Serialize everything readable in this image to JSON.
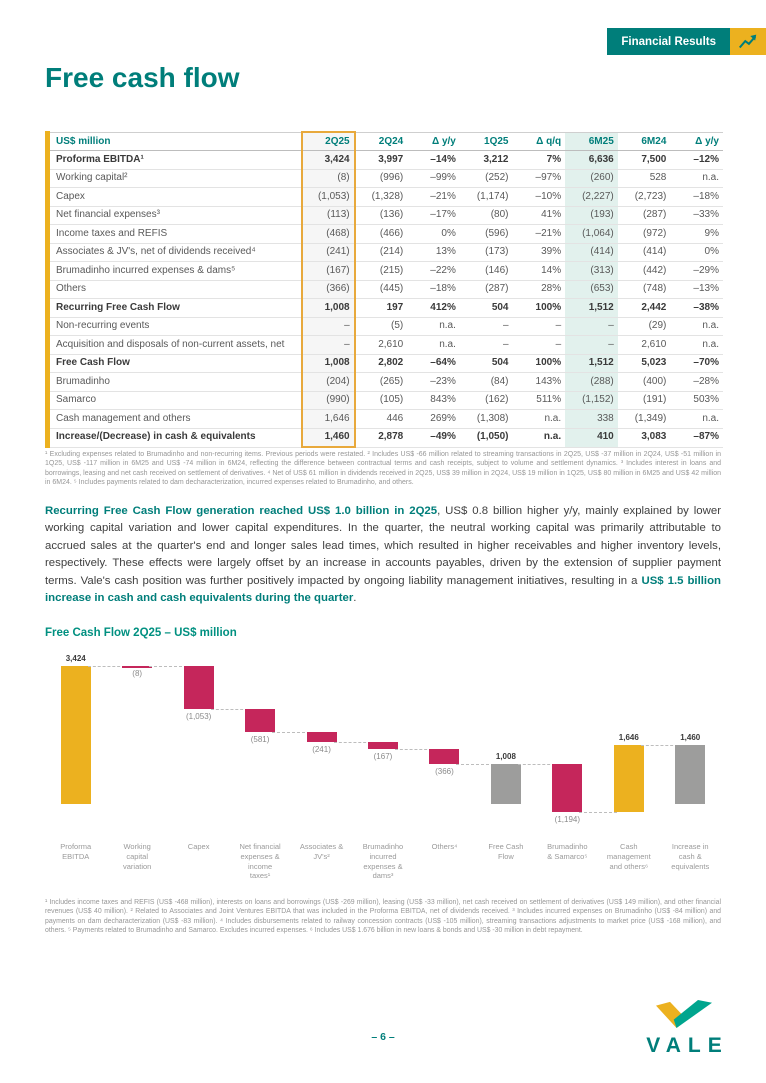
{
  "badge": {
    "label": "Financial Results"
  },
  "page": {
    "title": "Free cash flow",
    "number": "– 6 –",
    "brand": "VALE"
  },
  "colors": {
    "teal": "#007E7A",
    "gold": "#ECB11F",
    "crimson": "#C5265B",
    "gray_bar": "#9D9D9C",
    "mint_bg": "#E2F1ED",
    "gold_frame": "#E8A93C"
  },
  "table": {
    "columns": [
      "US$ million",
      "2Q25",
      "2Q24",
      "Δ y/y",
      "1Q25",
      "Δ q/q",
      "6M25",
      "6M24",
      "Δ y/y"
    ],
    "rows": [
      {
        "label": "Proforma EBITDA¹",
        "bold": true,
        "values": [
          "3,424",
          "3,997",
          "–14%",
          "3,212",
          "7%",
          "6,636",
          "7,500",
          "–12%"
        ]
      },
      {
        "label": "Working capital²",
        "bold": false,
        "values": [
          "(8)",
          "(996)",
          "–99%",
          "(252)",
          "–97%",
          "(260)",
          "528",
          "n.a."
        ]
      },
      {
        "label": "Capex",
        "bold": false,
        "values": [
          "(1,053)",
          "(1,328)",
          "–21%",
          "(1,174)",
          "–10%",
          "(2,227)",
          "(2,723)",
          "–18%"
        ]
      },
      {
        "label": "Net financial expenses³",
        "bold": false,
        "values": [
          "(113)",
          "(136)",
          "–17%",
          "(80)",
          "41%",
          "(193)",
          "(287)",
          "–33%"
        ]
      },
      {
        "label": "Income taxes and REFIS",
        "bold": false,
        "values": [
          "(468)",
          "(466)",
          "0%",
          "(596)",
          "–21%",
          "(1,064)",
          "(972)",
          "9%"
        ]
      },
      {
        "label": "Associates & JV's, net of dividends received⁴",
        "bold": false,
        "values": [
          "(241)",
          "(214)",
          "13%",
          "(173)",
          "39%",
          "(414)",
          "(414)",
          "0%"
        ]
      },
      {
        "label": "Brumadinho incurred expenses & dams⁵",
        "bold": false,
        "values": [
          "(167)",
          "(215)",
          "–22%",
          "(146)",
          "14%",
          "(313)",
          "(442)",
          "–29%"
        ]
      },
      {
        "label": "Others",
        "bold": false,
        "values": [
          "(366)",
          "(445)",
          "–18%",
          "(287)",
          "28%",
          "(653)",
          "(748)",
          "–13%"
        ]
      },
      {
        "label": "Recurring Free Cash Flow",
        "bold": true,
        "values": [
          "1,008",
          "197",
          "412%",
          "504",
          "100%",
          "1,512",
          "2,442",
          "–38%"
        ]
      },
      {
        "label": "Non-recurring events",
        "bold": false,
        "values": [
          "–",
          "(5)",
          "n.a.",
          "–",
          "–",
          "–",
          "(29)",
          "n.a."
        ]
      },
      {
        "label": "Acquisition and disposals of non-current assets, net",
        "bold": false,
        "values": [
          "–",
          "2,610",
          "n.a.",
          "–",
          "–",
          "–",
          "2,610",
          "n.a."
        ]
      },
      {
        "label": "Free Cash Flow",
        "bold": true,
        "values": [
          "1,008",
          "2,802",
          "–64%",
          "504",
          "100%",
          "1,512",
          "5,023",
          "–70%"
        ]
      },
      {
        "label": "Brumadinho",
        "bold": false,
        "values": [
          "(204)",
          "(265)",
          "–23%",
          "(84)",
          "143%",
          "(288)",
          "(400)",
          "–28%"
        ]
      },
      {
        "label": "Samarco",
        "bold": false,
        "values": [
          "(990)",
          "(105)",
          "843%",
          "(162)",
          "511%",
          "(1,152)",
          "(191)",
          "503%"
        ]
      },
      {
        "label": "Cash management and others",
        "bold": false,
        "values": [
          "1,646",
          "446",
          "269%",
          "(1,308)",
          "n.a.",
          "338",
          "(1,349)",
          "n.a."
        ]
      },
      {
        "label": "Increase/(Decrease) in cash & equivalents",
        "bold": true,
        "values": [
          "1,460",
          "2,878",
          "–49%",
          "(1,050)",
          "n.a.",
          "410",
          "3,083",
          "–87%"
        ]
      }
    ],
    "footnotes": "¹ Excluding expenses related to Brumadinho and non-recurring items. Previous periods were restated. ² Includes US$ -66 million related to streaming transactions in 2Q25, US$ -37 million in 2Q24, US$ -51 million in 1Q25, US$ -117 million in 6M25 and US$ -74 million in 6M24, reflecting the difference between contractual terms and cash receipts, subject to volume and settlement dynamics. ³ Includes interest in loans and borrowings, leasing and net cash received on settlement of derivatives. ⁴ Net of US$ 61 million in dividends received in 2Q25, US$ 39 million in 2Q24, US$ 19 million in 1Q25, US$ 80 million in 6M25 and US$ 42 million in 6M24. ⁵ Includes payments related to dam decharacterization, incurred expenses related to Brumadinho, and others."
  },
  "paragraph": {
    "lead_bold": "Recurring Free Cash Flow generation reached US$ 1.0 billion in 2Q25",
    "body": ", US$ 0.8 billion higher y/y, mainly explained by lower working capital variation and lower capital expenditures. In the quarter, the neutral working capital was primarily attributable to accrued sales at the quarter's end and longer sales lead times, which resulted in higher receivables and higher inventory levels, respectively. These effects were largely offset by an increase in accounts payables, driven by the extension of supplier payment terms. Vale's cash position was further positively impacted by ongoing liability management initiatives, resulting in a ",
    "tail_bold": "US$ 1.5 billion increase in cash and cash equivalents during the quarter",
    "period": "."
  },
  "chart_data": {
    "type": "waterfall",
    "title": "Free Cash Flow 2Q25 – US$ million",
    "ylim": [
      -186,
      3424
    ],
    "grid": false,
    "items": [
      {
        "label": "Proforma\nEBITDA",
        "value": 3424,
        "display": "3,424",
        "kind": "start",
        "color": "#ECB11F"
      },
      {
        "label": "Working\ncapital\nvariation",
        "value": -8,
        "display": "(8)",
        "kind": "delta",
        "color": "#C5265B"
      },
      {
        "label": "Capex",
        "value": -1053,
        "display": "(1,053)",
        "kind": "delta",
        "color": "#C5265B"
      },
      {
        "label": "Net financial\nexpenses &\nincome\ntaxes¹",
        "value": -581,
        "display": "(581)",
        "kind": "delta",
        "color": "#C5265B"
      },
      {
        "label": "Associates &\nJV's²",
        "value": -241,
        "display": "(241)",
        "kind": "delta",
        "color": "#C5265B"
      },
      {
        "label": "Brumadinho\nincurred\nexpenses &\ndams³",
        "value": -167,
        "display": "(167)",
        "kind": "delta",
        "color": "#C5265B"
      },
      {
        "label": "Others⁴",
        "value": -366,
        "display": "(366)",
        "kind": "delta",
        "color": "#C5265B"
      },
      {
        "label": "Free Cash\nFlow",
        "value": 1008,
        "display": "1,008",
        "kind": "subtotal",
        "color": "#9D9D9C"
      },
      {
        "label": "Brumadinho\n& Samarco⁵",
        "value": -1194,
        "display": "(1,194)",
        "kind": "delta",
        "color": "#C5265B"
      },
      {
        "label": "Cash\nmanagement\nand others⁶",
        "value": 1646,
        "display": "1,646",
        "kind": "delta",
        "color": "#ECB11F"
      },
      {
        "label": "Increase in\ncash &\nequivalents",
        "value": 1460,
        "display": "1,460",
        "kind": "total",
        "color": "#9D9D9C"
      }
    ],
    "footnotes": "¹ Includes income taxes and REFIS (US$ -468 million), interests on loans and borrowings (US$ -269 million), leasing (US$ -33 million), net cash received on settlement of derivatives (US$ 149 million), and other financial revenues (US$ 40 million). ² Related to Associates and Joint Ventures EBITDA that was included in the Proforma EBITDA, net of dividends received. ³ Includes incurred expenses on Brumadinho (US$ -84 million) and payments on dam decharacterization (US$ -83 million). ⁴ Includes disbursements related to railway concession contracts (US$ -105 million), streaming transactions adjustments to market price (US$ -168 million), and others. ⁵ Payments related to Brumadinho and Samarco. Excludes incurred expenses. ⁶ Includes US$ 1.676 billion in new loans & bonds and US$ -30 million in debt repayment."
  }
}
